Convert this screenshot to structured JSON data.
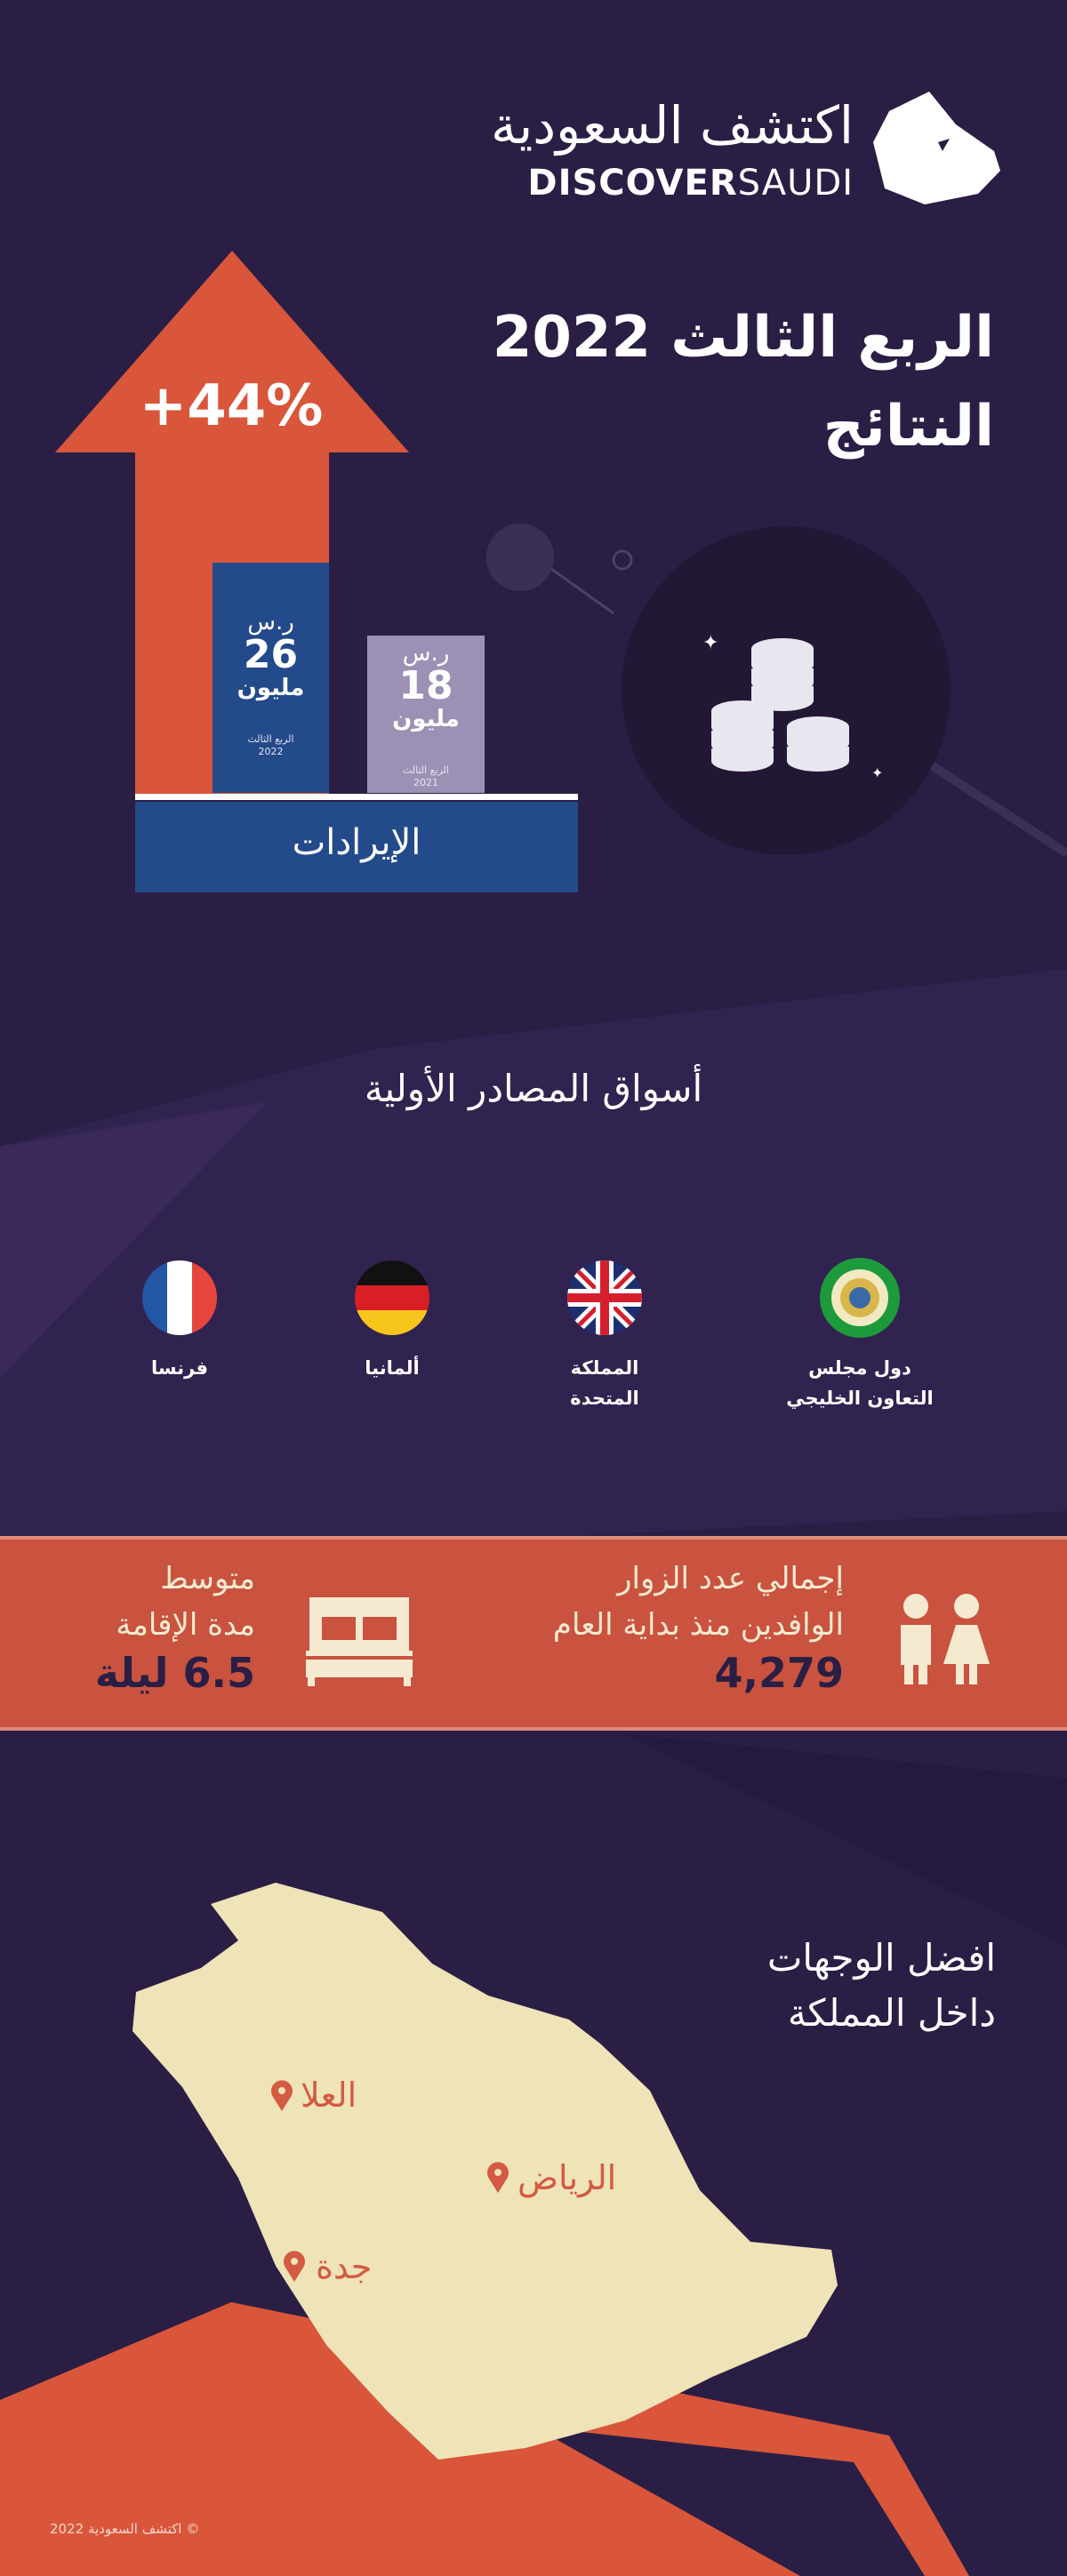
{
  "logo": {
    "arabic": "اكتشف السعودية",
    "english_bold": "DISCOVER",
    "english_thin": "SAUDI"
  },
  "header": {
    "title_line1": "الربع الثالث 2022",
    "title_line2": "النتائج"
  },
  "revenue": {
    "growth": "+44%",
    "label": "الإيرادات",
    "bars": [
      {
        "currency": "ر.س",
        "value": "26",
        "unit": "مليون",
        "period": "الربع الثالث",
        "year": "2022",
        "color": "#234a8a"
      },
      {
        "currency": "ر.س",
        "value": "18",
        "unit": "مليون",
        "period": "الربع الثالث",
        "year": "2021",
        "color": "#9c90b4"
      }
    ],
    "arrow_color": "#d9563a"
  },
  "markets": {
    "heading": "أسواق المصادر الأولية",
    "items": [
      {
        "line1": "دول مجلس",
        "line2": "التعاون الخليجي",
        "icon": "gcc-emblem-icon"
      },
      {
        "line1": "المملكة",
        "line2": "المتحدة",
        "icon": "uk-flag-icon"
      },
      {
        "line1": "ألمانيا",
        "line2": "",
        "icon": "germany-flag-icon"
      },
      {
        "line1": "فرنسا",
        "line2": "",
        "icon": "france-flag-icon"
      }
    ]
  },
  "stats": {
    "visitors_line1": "إجمالي عدد الزوار",
    "visitors_line2": "الوافدين منذ بداية العام",
    "visitors_value": "4,279",
    "stay_line1": "متوسط",
    "stay_line2": "مدة الإقامة",
    "stay_value": "6.5 ليلة"
  },
  "destinations": {
    "title_line1": "افضل الوجهات",
    "title_line2": "داخل المملكة",
    "cities": [
      "العلا",
      "الرياض",
      "جدة"
    ]
  },
  "footer": {
    "copyright": "© اكتشف السعودية 2022"
  },
  "colors": {
    "background": "#2a1e45",
    "accent": "#d9563a",
    "map": "#efe3b8"
  }
}
